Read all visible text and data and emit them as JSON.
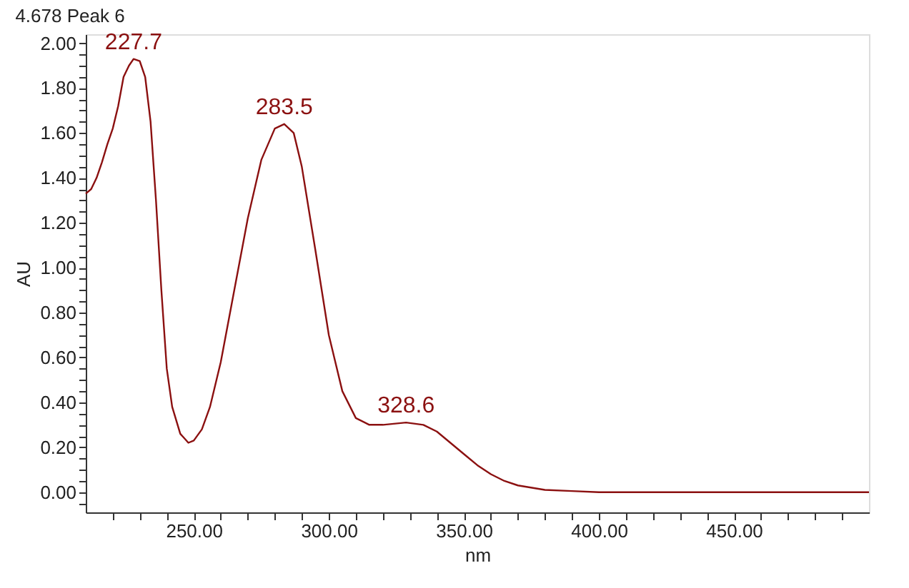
{
  "chart_data": {
    "type": "line",
    "title": "4.678 Peak 6",
    "xlabel": "nm",
    "ylabel": "AU",
    "x": [
      210,
      212,
      214,
      216,
      218,
      220,
      222,
      224,
      226,
      227.7,
      230,
      232,
      234,
      236,
      238,
      240,
      242,
      245,
      248,
      250,
      253,
      256,
      260,
      265,
      270,
      275,
      280,
      283.5,
      287,
      290,
      295,
      300,
      305,
      310,
      315,
      320,
      328.6,
      335,
      340,
      345,
      350,
      355,
      360,
      365,
      370,
      380,
      390,
      400,
      450,
      500
    ],
    "series": [
      {
        "color": "#8b1010",
        "values": [
          1.33,
          1.35,
          1.4,
          1.47,
          1.55,
          1.62,
          1.72,
          1.85,
          1.9,
          1.93,
          1.92,
          1.85,
          1.65,
          1.3,
          0.9,
          0.55,
          0.38,
          0.26,
          0.22,
          0.23,
          0.28,
          0.38,
          0.58,
          0.9,
          1.22,
          1.48,
          1.62,
          1.64,
          1.6,
          1.45,
          1.08,
          0.7,
          0.45,
          0.33,
          0.3,
          0.3,
          0.31,
          0.3,
          0.27,
          0.22,
          0.17,
          0.12,
          0.08,
          0.05,
          0.03,
          0.01,
          0.005,
          0.0,
          0.0,
          0.0
        ]
      }
    ],
    "xlim": [
      210,
      500
    ],
    "ylim": [
      -0.09,
      2.04
    ],
    "xticks": [
      {
        "value": 220,
        "label": null
      },
      {
        "value": 230,
        "label": null
      },
      {
        "value": 240,
        "label": null
      },
      {
        "value": 250,
        "label": "250.00"
      },
      {
        "value": 260,
        "label": null
      },
      {
        "value": 270,
        "label": null
      },
      {
        "value": 280,
        "label": null
      },
      {
        "value": 290,
        "label": null
      },
      {
        "value": 300,
        "label": "300.00"
      },
      {
        "value": 310,
        "label": null
      },
      {
        "value": 320,
        "label": null
      },
      {
        "value": 330,
        "label": null
      },
      {
        "value": 340,
        "label": null
      },
      {
        "value": 350,
        "label": "350.00"
      },
      {
        "value": 360,
        "label": null
      },
      {
        "value": 370,
        "label": null
      },
      {
        "value": 380,
        "label": null
      },
      {
        "value": 390,
        "label": null
      },
      {
        "value": 400,
        "label": "400.00"
      },
      {
        "value": 410,
        "label": null
      },
      {
        "value": 420,
        "label": null
      },
      {
        "value": 430,
        "label": null
      },
      {
        "value": 440,
        "label": null
      },
      {
        "value": 450,
        "label": "450.00"
      },
      {
        "value": 460,
        "label": null
      },
      {
        "value": 470,
        "label": null
      },
      {
        "value": 480,
        "label": null
      },
      {
        "value": 490,
        "label": null
      }
    ],
    "yticks": [
      {
        "value": -0.05,
        "label": null
      },
      {
        "value": 0,
        "label": "0.00"
      },
      {
        "value": 0.05,
        "label": null
      },
      {
        "value": 0.1,
        "label": null
      },
      {
        "value": 0.15,
        "label": null
      },
      {
        "value": 0.2,
        "label": "0.20"
      },
      {
        "value": 0.25,
        "label": null
      },
      {
        "value": 0.3,
        "label": null
      },
      {
        "value": 0.35,
        "label": null
      },
      {
        "value": 0.4,
        "label": "0.40"
      },
      {
        "value": 0.45,
        "label": null
      },
      {
        "value": 0.5,
        "label": null
      },
      {
        "value": 0.55,
        "label": null
      },
      {
        "value": 0.6,
        "label": "0.60"
      },
      {
        "value": 0.65,
        "label": null
      },
      {
        "value": 0.7,
        "label": null
      },
      {
        "value": 0.75,
        "label": null
      },
      {
        "value": 0.8,
        "label": "0.80"
      },
      {
        "value": 0.85,
        "label": null
      },
      {
        "value": 0.9,
        "label": null
      },
      {
        "value": 0.95,
        "label": null
      },
      {
        "value": 1.0,
        "label": "1.00"
      },
      {
        "value": 1.05,
        "label": null
      },
      {
        "value": 1.1,
        "label": null
      },
      {
        "value": 1.15,
        "label": null
      },
      {
        "value": 1.2,
        "label": "1.20"
      },
      {
        "value": 1.25,
        "label": null
      },
      {
        "value": 1.3,
        "label": null
      },
      {
        "value": 1.35,
        "label": null
      },
      {
        "value": 1.4,
        "label": "1.40"
      },
      {
        "value": 1.45,
        "label": null
      },
      {
        "value": 1.5,
        "label": null
      },
      {
        "value": 1.55,
        "label": null
      },
      {
        "value": 1.6,
        "label": "1.60"
      },
      {
        "value": 1.65,
        "label": null
      },
      {
        "value": 1.7,
        "label": null
      },
      {
        "value": 1.75,
        "label": null
      },
      {
        "value": 1.8,
        "label": "1.80"
      },
      {
        "value": 1.85,
        "label": null
      },
      {
        "value": 1.9,
        "label": null
      },
      {
        "value": 1.95,
        "label": null
      },
      {
        "value": 2.0,
        "label": "2.00"
      }
    ],
    "grid": false,
    "marker": "none",
    "line_style": "solid",
    "annotations": [
      {
        "text": "227.7",
        "x": 227.7,
        "y": 1.93
      },
      {
        "text": "283.5",
        "x": 283.5,
        "y": 1.64
      },
      {
        "text": "328.6",
        "x": 328.6,
        "y": 0.31
      }
    ]
  }
}
